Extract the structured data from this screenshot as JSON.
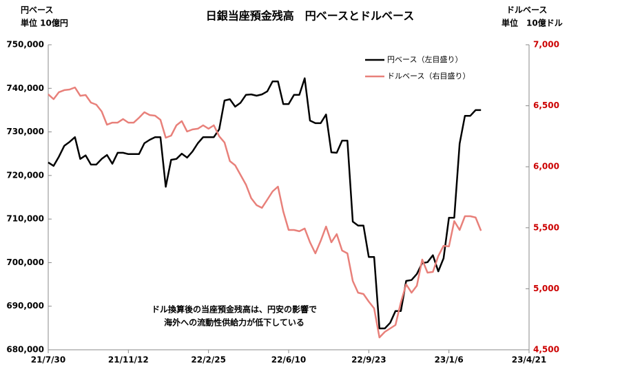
{
  "chart_data": {
    "type": "line",
    "title": "日銀当座預金残高　円ベースとドルベース",
    "ylabel": [
      "円ベース",
      "単位 10億円"
    ],
    "y2label": [
      "ドルベース",
      "単位　10億ドル"
    ],
    "annotation": [
      "ドル換算後の当座預金残高は、円安の影響で",
      "海外への流動性供給力が低下している"
    ],
    "x": [
      "21/7/30",
      "21/8/6",
      "21/8/13",
      "21/8/20",
      "21/8/27",
      "21/9/3",
      "21/9/10",
      "21/9/17",
      "21/9/24",
      "21/10/1",
      "21/10/8",
      "21/10/15",
      "21/10/22",
      "21/10/29",
      "21/11/5",
      "21/11/12",
      "21/11/19",
      "21/11/26",
      "21/12/3",
      "21/12/10",
      "21/12/17",
      "21/12/24",
      "21/12/31",
      "22/1/7",
      "22/1/14",
      "22/1/21",
      "22/1/28",
      "22/2/4",
      "22/2/11",
      "22/2/18",
      "22/2/25",
      "22/3/4",
      "22/3/11",
      "22/3/18",
      "22/3/25",
      "22/4/1",
      "22/4/8",
      "22/4/15",
      "22/4/22",
      "22/4/29",
      "22/5/6",
      "22/5/13",
      "22/5/20",
      "22/5/27",
      "22/6/3",
      "22/6/10",
      "22/6/17",
      "22/6/24",
      "22/7/1",
      "22/7/8",
      "22/7/15",
      "22/7/22",
      "22/7/29",
      "22/8/5",
      "22/8/12",
      "22/8/19",
      "22/8/26",
      "22/9/2",
      "22/9/9",
      "22/9/16",
      "22/9/23",
      "22/9/30",
      "22/10/7",
      "22/10/14",
      "22/10/21",
      "22/10/28",
      "22/11/4",
      "22/11/11",
      "22/11/18",
      "22/11/25",
      "22/12/2",
      "22/12/9",
      "22/12/16",
      "22/12/23",
      "22/12/30",
      "23/1/6",
      "23/1/13",
      "23/1/20",
      "23/1/27",
      "23/2/3",
      "23/2/10",
      "23/2/17"
    ],
    "series": [
      {
        "name": "円ベース（左目盛り）",
        "color": "#000000",
        "values": [
          723000,
          722200,
          724300,
          726800,
          727700,
          728800,
          723800,
          724600,
          722500,
          722500,
          723800,
          724700,
          722700,
          725200,
          725200,
          724900,
          724900,
          724900,
          727400,
          728200,
          728800,
          728800,
          717400,
          723600,
          723800,
          725000,
          724100,
          725500,
          727400,
          728800,
          728800,
          728800,
          730600,
          737200,
          737500,
          735800,
          736700,
          738500,
          738600,
          738300,
          738600,
          739300,
          741600,
          741600,
          736400,
          736400,
          738500,
          738500,
          742300,
          732600,
          732000,
          732000,
          734000,
          725300,
          725200,
          728000,
          728000,
          709400,
          708500,
          708500,
          701300,
          701300,
          684900,
          684900,
          686200,
          688900,
          688900,
          695800,
          696000,
          697400,
          699900,
          700100,
          701700,
          698000,
          701000,
          710300,
          710300,
          727300,
          733700,
          733700,
          735000,
          735000
        ]
      },
      {
        "name": "ドルベース（右目盛り）",
        "color": "#e8807a",
        "axis": "y2",
        "values": [
          6594,
          6554,
          6611,
          6628,
          6633,
          6650,
          6582,
          6588,
          6526,
          6509,
          6453,
          6345,
          6362,
          6362,
          6391,
          6362,
          6362,
          6402,
          6447,
          6424,
          6419,
          6385,
          6238,
          6255,
          6340,
          6374,
          6289,
          6306,
          6312,
          6340,
          6312,
          6340,
          6250,
          6199,
          6046,
          6012,
          5933,
          5854,
          5742,
          5685,
          5663,
          5730,
          5798,
          5837,
          5634,
          5482,
          5482,
          5471,
          5494,
          5381,
          5290,
          5392,
          5510,
          5381,
          5448,
          5313,
          5290,
          5064,
          4968,
          4957,
          4895,
          4839,
          4601,
          4647,
          4675,
          4703,
          4889,
          5036,
          4968,
          5025,
          5239,
          5132,
          5138,
          5268,
          5352,
          5347,
          5555,
          5482,
          5595,
          5595,
          5584,
          5476
        ]
      }
    ],
    "xlim": [
      "21/7/30",
      "23/4/21"
    ],
    "xticks": [
      "21/7/30",
      "21/11/12",
      "22/2/25",
      "22/6/10",
      "22/9/23",
      "23/1/6",
      "23/4/21"
    ],
    "ylim": [
      680000,
      750000
    ],
    "yticks": [
      {
        "value": 680000,
        "label": "680,000"
      },
      {
        "value": 690000,
        "label": "690,000"
      },
      {
        "value": 700000,
        "label": "700,000"
      },
      {
        "value": 710000,
        "label": "710,000"
      },
      {
        "value": 720000,
        "label": "720,000"
      },
      {
        "value": 730000,
        "label": "730,000"
      },
      {
        "value": 740000,
        "label": "740,000"
      },
      {
        "value": 750000,
        "label": "750,000"
      }
    ],
    "y2lim": [
      4500,
      7000
    ],
    "y2ticks": [
      {
        "value": 4500,
        "label": "4,500"
      },
      {
        "value": 5000,
        "label": "5,000"
      },
      {
        "value": 5500,
        "label": "5,500"
      },
      {
        "value": 6000,
        "label": "6,000"
      },
      {
        "value": 6500,
        "label": "6,500"
      },
      {
        "value": 7000,
        "label": "7,000"
      }
    ],
    "y2color": "#cc0000",
    "grid": false,
    "legend": "upper right"
  }
}
